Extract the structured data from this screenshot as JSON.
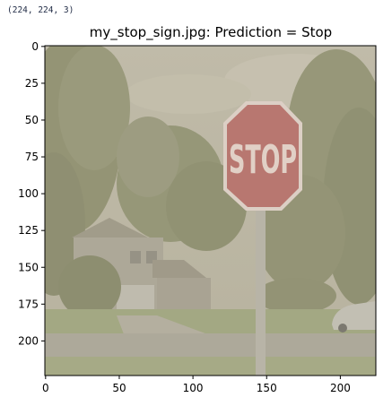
{
  "output": {
    "shape_text": "(224, 224, 3)"
  },
  "plot": {
    "title": "my_stop_sign.jpg: Prediction = Stop",
    "image": {
      "width_units": 224,
      "height_units": 224,
      "sign_text": "STOP",
      "sign_color": "#b86a66",
      "sky_color": "#bfb8a4",
      "foliage_color": "#8f9170",
      "grass_color": "#9fa67e",
      "road_color": "#a9a598"
    },
    "x_axis": {
      "ticks": [
        0,
        50,
        100,
        150,
        200
      ],
      "labels": [
        "0",
        "50",
        "100",
        "150",
        "200"
      ]
    },
    "y_axis": {
      "ticks": [
        0,
        25,
        50,
        75,
        100,
        125,
        150,
        175,
        200
      ],
      "labels": [
        "0",
        "25",
        "50",
        "75",
        "100",
        "125",
        "150",
        "175",
        "200"
      ]
    }
  }
}
